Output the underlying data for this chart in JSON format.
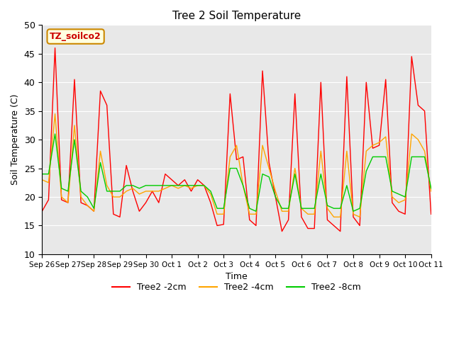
{
  "title": "Tree 2 Soil Temperature",
  "xlabel": "Time",
  "ylabel": "Soil Temperature (C)",
  "ylim": [
    10,
    50
  ],
  "annotation": "TZ_soilco2",
  "bg_color": "#e8e8e8",
  "x_labels": [
    "Sep 26",
    "Sep 27",
    "Sep 28",
    "Sep 29",
    "Sep 30",
    "Oct 1",
    "Oct 2",
    "Oct 3",
    "Oct 4",
    "Oct 5",
    "Oct 6",
    "Oct 7",
    "Oct 8",
    "Oct 9",
    "Oct 10",
    "Oct 11"
  ],
  "series": {
    "Tree2 -2cm": {
      "color": "#ff0000",
      "data": [
        17.5,
        19.5,
        46,
        19.5,
        19,
        40.5,
        19,
        18.5,
        17.5,
        38.5,
        36,
        17,
        16.5,
        25.5,
        21,
        17.5,
        19,
        21,
        19,
        24,
        23,
        22,
        23,
        21,
        23,
        22,
        19,
        15,
        15.2,
        38,
        26.5,
        27,
        16,
        15,
        42,
        26,
        20,
        14,
        16,
        38,
        16.5,
        14.5,
        14.5,
        40,
        16,
        15,
        14,
        41,
        16.5,
        15,
        40,
        28.5,
        29,
        40.5,
        19,
        17.5,
        17,
        44.5,
        36,
        35,
        17
      ]
    },
    "Tree2 -4cm": {
      "color": "#ffa500",
      "data": [
        23,
        22.5,
        34.5,
        20,
        19,
        32.5,
        20,
        18.5,
        17.5,
        28,
        22,
        20,
        20,
        21,
        21.5,
        20.5,
        21,
        21,
        21,
        21.5,
        22,
        21.5,
        22,
        21.5,
        22,
        22,
        20.5,
        17,
        17,
        27,
        29,
        22,
        17,
        17,
        29,
        25,
        21,
        17.5,
        17.5,
        25,
        18,
        17,
        17,
        28,
        18,
        16.5,
        16.5,
        28,
        17,
        16.5,
        28,
        29,
        29.5,
        30.5,
        20,
        19,
        19.5,
        31,
        30,
        28,
        21
      ]
    },
    "Tree2 -8cm": {
      "color": "#00cc00",
      "data": [
        24,
        24,
        31,
        21.5,
        21,
        30,
        21,
        20,
        18,
        26,
        21,
        21,
        21,
        22,
        22,
        21.5,
        22,
        22,
        22,
        22,
        22,
        22,
        22,
        22,
        22,
        22,
        21,
        18,
        18,
        25,
        25,
        22,
        18,
        17.5,
        24,
        23.5,
        20,
        18,
        18,
        24,
        18,
        18,
        18,
        24,
        18.5,
        18,
        18,
        22,
        17.5,
        18,
        24.5,
        27,
        27,
        27,
        21,
        20.5,
        20,
        27,
        27,
        27,
        21.5
      ]
    }
  }
}
